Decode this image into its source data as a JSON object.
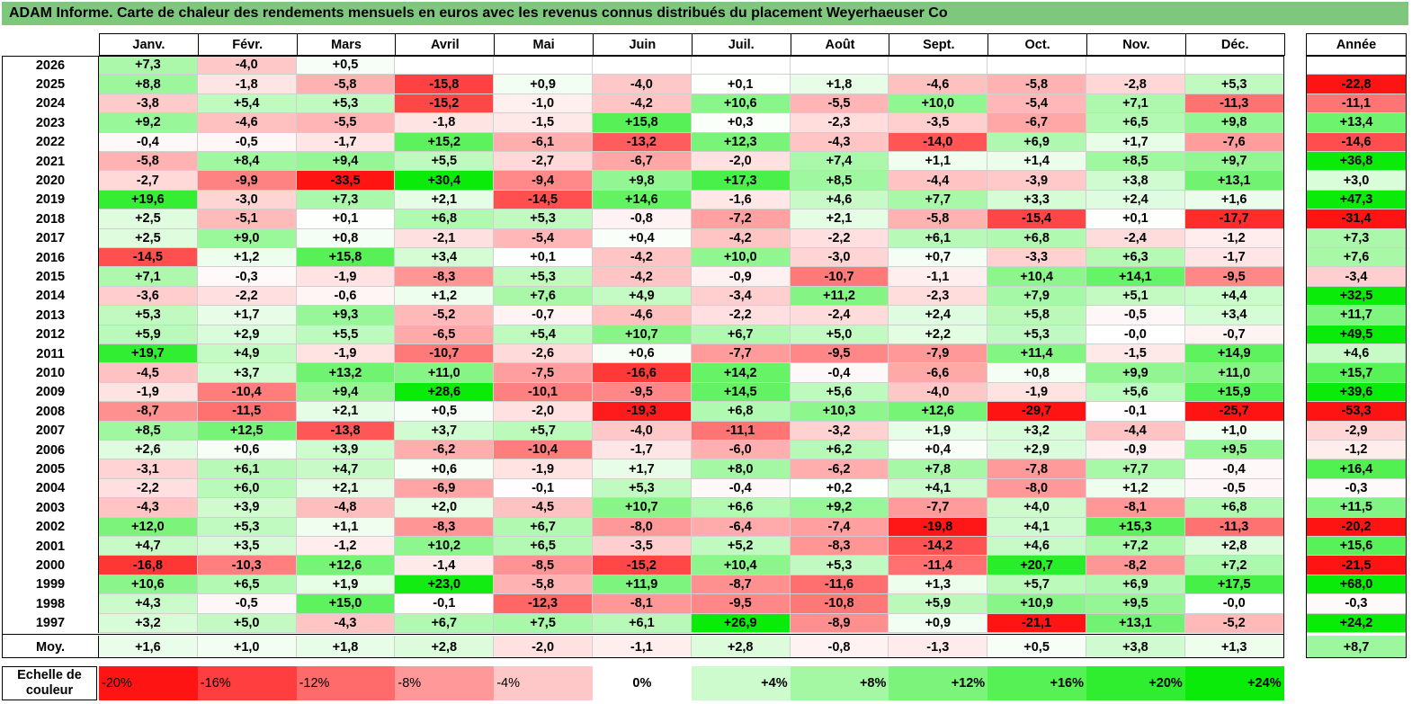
{
  "title": "ADAM Informe. Carte de chaleur des rendements mensuels en euros avec les revenus connus distribués du placement Weyerhaeuser Co",
  "months": [
    "Janv.",
    "Févr.",
    "Mars",
    "Avril",
    "Mai",
    "Juin",
    "Juil.",
    "Août",
    "Sept.",
    "Oct.",
    "Nov.",
    "Déc."
  ],
  "annual_header": "Année",
  "avg_label": "Moy.",
  "scale_label": "Echelle de couleur",
  "scale": [
    "-20%",
    "-16%",
    "-12%",
    "-8%",
    "-4%",
    "0%",
    "+4%",
    "+8%",
    "+12%",
    "+16%",
    "+20%",
    "+24%"
  ],
  "scale_values": [
    -20,
    -16,
    -12,
    -8,
    -4,
    0,
    4,
    8,
    12,
    16,
    20,
    24
  ],
  "chart_data": {
    "type": "heatmap",
    "title": "ADAM Informe. Carte de chaleur des rendements mensuels en euros avec les revenus connus distribués du placement Weyerhaeuser Co",
    "columns": [
      "Janv.",
      "Févr.",
      "Mars",
      "Avril",
      "Mai",
      "Juin",
      "Juil.",
      "Août",
      "Sept.",
      "Oct.",
      "Nov.",
      "Déc.",
      "Année"
    ],
    "rows": [
      {
        "year": "2026",
        "values": [
          "+7,3",
          "-4,0",
          "+0,5",
          "",
          "",
          "",
          "",
          "",
          "",
          "",
          "",
          ""
        ],
        "annual": ""
      },
      {
        "year": "2025",
        "values": [
          "+8,8",
          "-1,8",
          "-5,8",
          "-15,8",
          "+0,9",
          "-4,0",
          "+0,1",
          "+1,8",
          "-4,6",
          "-5,8",
          "-2,8",
          "+5,3"
        ],
        "annual": "-22,8"
      },
      {
        "year": "2024",
        "values": [
          "-3,8",
          "+5,4",
          "+5,3",
          "-15,2",
          "-1,0",
          "-4,2",
          "+10,6",
          "-5,5",
          "+10,0",
          "-5,4",
          "+7,1",
          "-11,3"
        ],
        "annual": "-11,1"
      },
      {
        "year": "2023",
        "values": [
          "+9,2",
          "-4,6",
          "-5,5",
          "-1,8",
          "-1,5",
          "+15,8",
          "+0,3",
          "-2,3",
          "-3,5",
          "-6,7",
          "+6,5",
          "+9,8"
        ],
        "annual": "+13,4"
      },
      {
        "year": "2022",
        "values": [
          "-0,4",
          "-0,5",
          "-1,7",
          "+15,2",
          "-6,1",
          "-13,2",
          "+12,3",
          "-4,3",
          "-14,0",
          "+6,9",
          "+1,7",
          "-7,6"
        ],
        "annual": "-14,6"
      },
      {
        "year": "2021",
        "values": [
          "-5,8",
          "+8,4",
          "+9,4",
          "+5,5",
          "-2,7",
          "-6,7",
          "-2,0",
          "+7,4",
          "+1,1",
          "+1,4",
          "+8,5",
          "+9,7"
        ],
        "annual": "+36,8"
      },
      {
        "year": "2020",
        "values": [
          "-2,7",
          "-9,9",
          "-33,5",
          "+30,4",
          "-9,4",
          "+9,8",
          "+17,3",
          "+8,5",
          "-4,4",
          "-3,9",
          "+3,8",
          "+13,1"
        ],
        "annual": "+3,0"
      },
      {
        "year": "2019",
        "values": [
          "+19,6",
          "-3,0",
          "+7,3",
          "+2,1",
          "-14,5",
          "+14,6",
          "-1,6",
          "+4,6",
          "+7,7",
          "+3,3",
          "+2,4",
          "+1,6"
        ],
        "annual": "+47,3"
      },
      {
        "year": "2018",
        "values": [
          "+2,5",
          "-5,1",
          "+0,1",
          "+6,8",
          "+5,3",
          "-0,8",
          "-7,2",
          "+2,1",
          "-5,8",
          "-15,4",
          "+0,1",
          "-17,7"
        ],
        "annual": "-31,4"
      },
      {
        "year": "2017",
        "values": [
          "+2,5",
          "+9,0",
          "+0,8",
          "-2,1",
          "-5,4",
          "+0,4",
          "-4,2",
          "-2,2",
          "+6,1",
          "+6,8",
          "-2,4",
          "-1,2"
        ],
        "annual": "+7,3"
      },
      {
        "year": "2016",
        "values": [
          "-14,5",
          "+1,2",
          "+15,8",
          "+3,4",
          "+0,1",
          "-4,2",
          "+10,0",
          "-3,0",
          "+0,7",
          "-3,3",
          "+6,3",
          "-1,7"
        ],
        "annual": "+7,6"
      },
      {
        "year": "2015",
        "values": [
          "+7,1",
          "-0,3",
          "-1,9",
          "-8,3",
          "+5,3",
          "-4,2",
          "-0,9",
          "-10,7",
          "-1,1",
          "+10,4",
          "+14,1",
          "-9,5"
        ],
        "annual": "-3,4"
      },
      {
        "year": "2014",
        "values": [
          "-3,6",
          "-2,2",
          "-0,6",
          "+1,2",
          "+7,6",
          "+4,9",
          "-3,4",
          "+11,2",
          "-2,3",
          "+7,9",
          "+5,1",
          "+4,4"
        ],
        "annual": "+32,5"
      },
      {
        "year": "2013",
        "values": [
          "+5,3",
          "+1,7",
          "+9,3",
          "-5,2",
          "-0,7",
          "-4,6",
          "-2,2",
          "-2,4",
          "+2,4",
          "+5,8",
          "-0,5",
          "+3,4"
        ],
        "annual": "+11,7"
      },
      {
        "year": "2012",
        "values": [
          "+5,9",
          "+2,9",
          "+5,5",
          "-6,5",
          "+5,4",
          "+10,7",
          "+6,7",
          "+5,0",
          "+2,2",
          "+5,3",
          "-0,0",
          "-0,7"
        ],
        "annual": "+49,5"
      },
      {
        "year": "2011",
        "values": [
          "+19,7",
          "+4,9",
          "-1,9",
          "-10,7",
          "-2,6",
          "+0,6",
          "-7,7",
          "-9,5",
          "-7,9",
          "+11,4",
          "-1,5",
          "+14,9"
        ],
        "annual": "+4,6"
      },
      {
        "year": "2010",
        "values": [
          "-4,5",
          "+3,7",
          "+13,2",
          "+11,0",
          "-7,5",
          "-16,6",
          "+14,2",
          "-0,4",
          "-6,6",
          "+0,8",
          "+9,9",
          "+11,0"
        ],
        "annual": "+15,7"
      },
      {
        "year": "2009",
        "values": [
          "-1,9",
          "-10,4",
          "+9,4",
          "+28,6",
          "-10,1",
          "-9,5",
          "+14,5",
          "+5,6",
          "-4,0",
          "-1,9",
          "+5,6",
          "+15,9"
        ],
        "annual": "+39,6"
      },
      {
        "year": "2008",
        "values": [
          "-8,7",
          "-11,5",
          "+2,1",
          "+0,5",
          "-2,0",
          "-19,3",
          "+6,8",
          "+10,3",
          "+12,6",
          "-29,7",
          "-0,1",
          "-25,7"
        ],
        "annual": "-53,3"
      },
      {
        "year": "2007",
        "values": [
          "+8,5",
          "+12,5",
          "-13,8",
          "+3,7",
          "+5,7",
          "-4,0",
          "-11,1",
          "-3,2",
          "+1,9",
          "+3,2",
          "-4,4",
          "+1,0"
        ],
        "annual": "-2,9"
      },
      {
        "year": "2006",
        "values": [
          "+2,6",
          "+0,6",
          "+3,9",
          "-6,2",
          "-10,4",
          "-1,7",
          "-6,0",
          "+6,2",
          "+0,4",
          "+2,9",
          "-0,9",
          "+9,5"
        ],
        "annual": "-1,2"
      },
      {
        "year": "2005",
        "values": [
          "-3,1",
          "+6,1",
          "+4,7",
          "+0,6",
          "-1,9",
          "+1,7",
          "+8,0",
          "-6,2",
          "+7,8",
          "-7,8",
          "+7,7",
          "-0,4"
        ],
        "annual": "+16,4"
      },
      {
        "year": "2004",
        "values": [
          "-2,2",
          "+6,0",
          "+2,1",
          "-6,9",
          "-0,1",
          "+5,3",
          "-0,4",
          "+0,2",
          "+4,1",
          "-8,0",
          "+1,2",
          "-0,5"
        ],
        "annual": "-0,3"
      },
      {
        "year": "2003",
        "values": [
          "-4,3",
          "+3,9",
          "-4,8",
          "+2,0",
          "-4,5",
          "+10,7",
          "+6,6",
          "+9,2",
          "-7,7",
          "+4,0",
          "-8,1",
          "+6,8"
        ],
        "annual": "+11,5"
      },
      {
        "year": "2002",
        "values": [
          "+12,0",
          "+5,3",
          "+1,1",
          "-8,3",
          "+6,7",
          "-8,0",
          "-6,4",
          "-7,4",
          "-19,8",
          "+4,1",
          "+15,3",
          "-11,3"
        ],
        "annual": "-20,2"
      },
      {
        "year": "2001",
        "values": [
          "+4,7",
          "+3,5",
          "-1,2",
          "+10,2",
          "+6,5",
          "-3,5",
          "+5,2",
          "-8,3",
          "-14,2",
          "+4,6",
          "+7,2",
          "+2,8"
        ],
        "annual": "+15,6"
      },
      {
        "year": "2000",
        "values": [
          "-16,8",
          "-10,3",
          "+12,6",
          "-1,4",
          "-8,5",
          "-15,2",
          "+10,4",
          "+5,3",
          "-11,4",
          "+20,7",
          "-8,2",
          "+7,2"
        ],
        "annual": "-21,5"
      },
      {
        "year": "1999",
        "values": [
          "+10,6",
          "+6,5",
          "+1,9",
          "+23,0",
          "-5,8",
          "+11,9",
          "-8,7",
          "-11,6",
          "+1,3",
          "+5,7",
          "+6,9",
          "+17,5"
        ],
        "annual": "+68,0"
      },
      {
        "year": "1998",
        "values": [
          "+4,3",
          "-0,5",
          "+15,0",
          "-0,1",
          "-12,3",
          "-8,1",
          "-9,5",
          "-10,8",
          "+5,9",
          "+10,9",
          "+9,5",
          "-0,0"
        ],
        "annual": "-0,3"
      },
      {
        "year": "1997",
        "values": [
          "+3,2",
          "+5,0",
          "-4,3",
          "+6,7",
          "+7,5",
          "+6,1",
          "+26,9",
          "-8,9",
          "+0,9",
          "-21,1",
          "+13,1",
          "-5,2"
        ],
        "annual": "+24,2"
      }
    ],
    "average": {
      "label": "Moy.",
      "values": [
        "+1,6",
        "+1,0",
        "+1,8",
        "+2,8",
        "-2,0",
        "-1,1",
        "+2,8",
        "-0,8",
        "-1,3",
        "+0,5",
        "+3,8",
        "+1,3"
      ],
      "annual": "+8,7"
    },
    "color_scale": {
      "min": -20,
      "max": 24,
      "negative_color": "#ff0000",
      "zero_color": "#ffffff",
      "positive_color": "#00ee00"
    }
  }
}
